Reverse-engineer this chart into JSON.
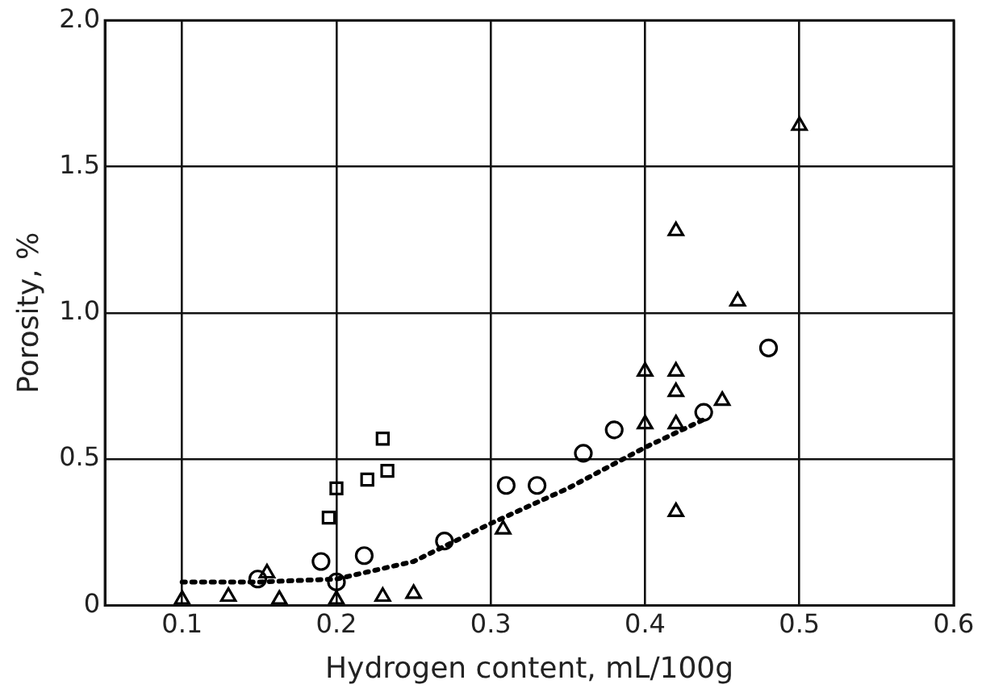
{
  "chart_data": {
    "type": "scatter",
    "xlabel": "Hydrogen content, mL/100g",
    "ylabel": "Porosity, %",
    "xlim": [
      0.05,
      0.6
    ],
    "xticks": [
      0.1,
      0.2,
      0.3,
      0.4,
      0.5,
      0.6
    ],
    "ylim": [
      0,
      2
    ],
    "yticks": [
      0,
      0.5,
      {
        "value": 1,
        "label": "1.0"
      },
      1.5,
      {
        "value": 2,
        "label": "2.0"
      }
    ],
    "grid": true,
    "legend": false,
    "series": [
      {
        "color": "#000000",
        "marker": "triangle",
        "x": [
          0.1,
          0.13,
          0.155,
          0.163,
          0.2,
          0.23,
          0.25,
          0.308,
          0.4,
          0.4,
          0.42,
          0.42,
          0.42,
          0.42,
          0.42,
          0.45,
          0.46,
          0.5
        ],
        "values": [
          0.02,
          0.03,
          0.11,
          0.02,
          0.02,
          0.03,
          0.04,
          0.26,
          0.8,
          0.62,
          0.8,
          0.73,
          0.62,
          0.32,
          1.28,
          0.7,
          1.04,
          1.64
        ]
      },
      {
        "color": "#000000",
        "marker": "square",
        "x": [
          0.195,
          0.2,
          0.22,
          0.233,
          0.23
        ],
        "values": [
          0.3,
          0.4,
          0.43,
          0.46,
          0.57
        ]
      },
      {
        "color": "#000000",
        "marker": "circle",
        "x": [
          0.149,
          0.19,
          0.2,
          0.218,
          0.27,
          0.31,
          0.33,
          0.36,
          0.38,
          0.438,
          0.48
        ],
        "values": [
          0.09,
          0.15,
          0.08,
          0.17,
          0.22,
          0.41,
          0.41,
          0.52,
          0.6,
          0.66,
          0.88
        ]
      },
      {
        "type": "line",
        "color": "#000000",
        "line_style": "dotted",
        "marker": "none",
        "x": [
          0.1,
          0.15,
          0.2,
          0.25,
          0.3,
          0.35,
          0.4,
          0.44
        ],
        "values": [
          0.08,
          0.08,
          0.09,
          0.15,
          0.28,
          0.4,
          0.54,
          0.64
        ]
      }
    ]
  }
}
